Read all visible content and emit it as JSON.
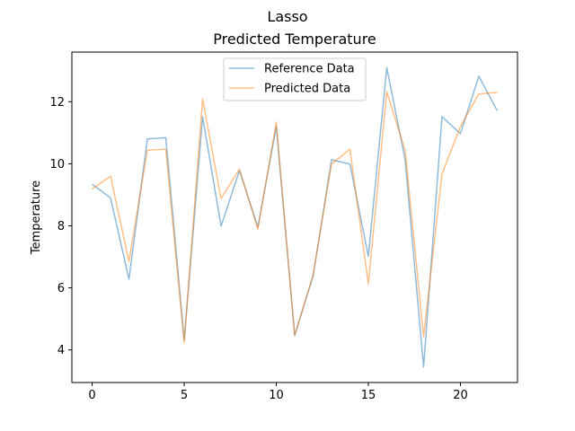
{
  "chart_data": {
    "type": "line",
    "suptitle": "Lasso",
    "title": "Predicted Temperature",
    "xlabel": "",
    "ylabel": "Temperature",
    "xlim": [
      -1.1,
      23.1
    ],
    "ylim": [
      2.95,
      13.6
    ],
    "xticks": [
      0,
      5,
      10,
      15,
      20
    ],
    "yticks": [
      4,
      6,
      8,
      10,
      12
    ],
    "grid": false,
    "legend_position": "upper center",
    "x": [
      0,
      1,
      2,
      3,
      4,
      5,
      6,
      7,
      8,
      9,
      10,
      11,
      12,
      13,
      14,
      15,
      16,
      17,
      18,
      19,
      20,
      21,
      22
    ],
    "series": [
      {
        "name": "Reference Data",
        "color": "#1f77b4",
        "values": [
          9.34,
          8.9,
          6.28,
          10.8,
          10.84,
          4.32,
          11.52,
          7.99,
          9.78,
          7.96,
          11.2,
          4.47,
          6.38,
          10.13,
          9.99,
          7.02,
          13.1,
          10.12,
          3.45,
          11.52,
          10.97,
          12.82,
          11.71
        ]
      },
      {
        "name": "Predicted Data",
        "color": "#ff7f0e",
        "values": [
          9.19,
          9.6,
          6.85,
          10.44,
          10.47,
          4.23,
          12.09,
          8.88,
          9.83,
          7.89,
          11.34,
          4.47,
          6.42,
          9.99,
          10.47,
          6.13,
          12.32,
          10.42,
          4.43,
          9.67,
          11.2,
          12.25,
          12.3
        ]
      }
    ]
  }
}
